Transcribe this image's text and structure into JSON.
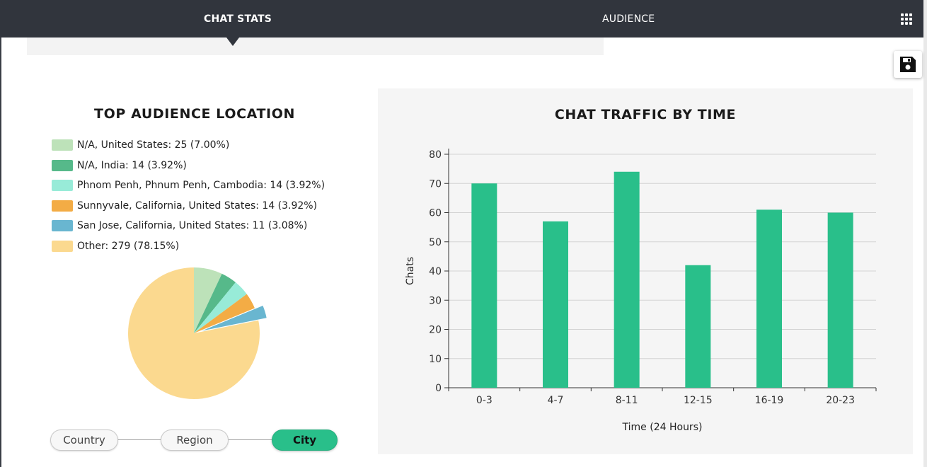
{
  "nav": {
    "tabs": [
      {
        "label": "CHAT STATS",
        "active": true
      },
      {
        "label": "AUDIENCE",
        "active": false
      }
    ],
    "apps_icon": "apps-grid-icon"
  },
  "toolbar": {
    "save_icon": "floppy-disk-icon"
  },
  "location": {
    "title": "TOP AUDIENCE LOCATION",
    "legend": [
      {
        "label": "N/A, United States: 25 (7.00%)",
        "color": "#bde2b9",
        "value": 25
      },
      {
        "label": "N/A, India: 14 (3.92%)",
        "color": "#56b98a",
        "value": 14
      },
      {
        "label": "Phnom Penh, Phnum Penh, Cambodia: 14 (3.92%)",
        "color": "#98ebd8",
        "value": 14
      },
      {
        "label": "Sunnyvale, California, United States: 14 (3.92%)",
        "color": "#f3ac45",
        "value": 14
      },
      {
        "label": "San Jose, California, United States: 11 (3.08%)",
        "color": "#69b6d0",
        "value": 11
      },
      {
        "label": "Other: 279 (78.15%)",
        "color": "#fbd98f",
        "value": 279
      }
    ],
    "exploded_slice": 4,
    "toggle": [
      {
        "label": "Country",
        "active": false
      },
      {
        "label": "Region",
        "active": false
      },
      {
        "label": "City",
        "active": true
      }
    ]
  },
  "chart_data": {
    "type": "bar",
    "title": "CHAT TRAFFIC BY TIME",
    "xlabel": "Time (24 Hours)",
    "ylabel": "Chats",
    "categories": [
      "0-3",
      "4-7",
      "8-11",
      "12-15",
      "16-19",
      "20-23"
    ],
    "values": [
      70,
      57,
      74,
      42,
      61,
      60
    ],
    "ylim": [
      0,
      80
    ],
    "yticks": [
      0,
      10,
      20,
      30,
      40,
      50,
      60,
      70,
      80
    ],
    "grid": true,
    "bar_color": "#29bf8a"
  }
}
